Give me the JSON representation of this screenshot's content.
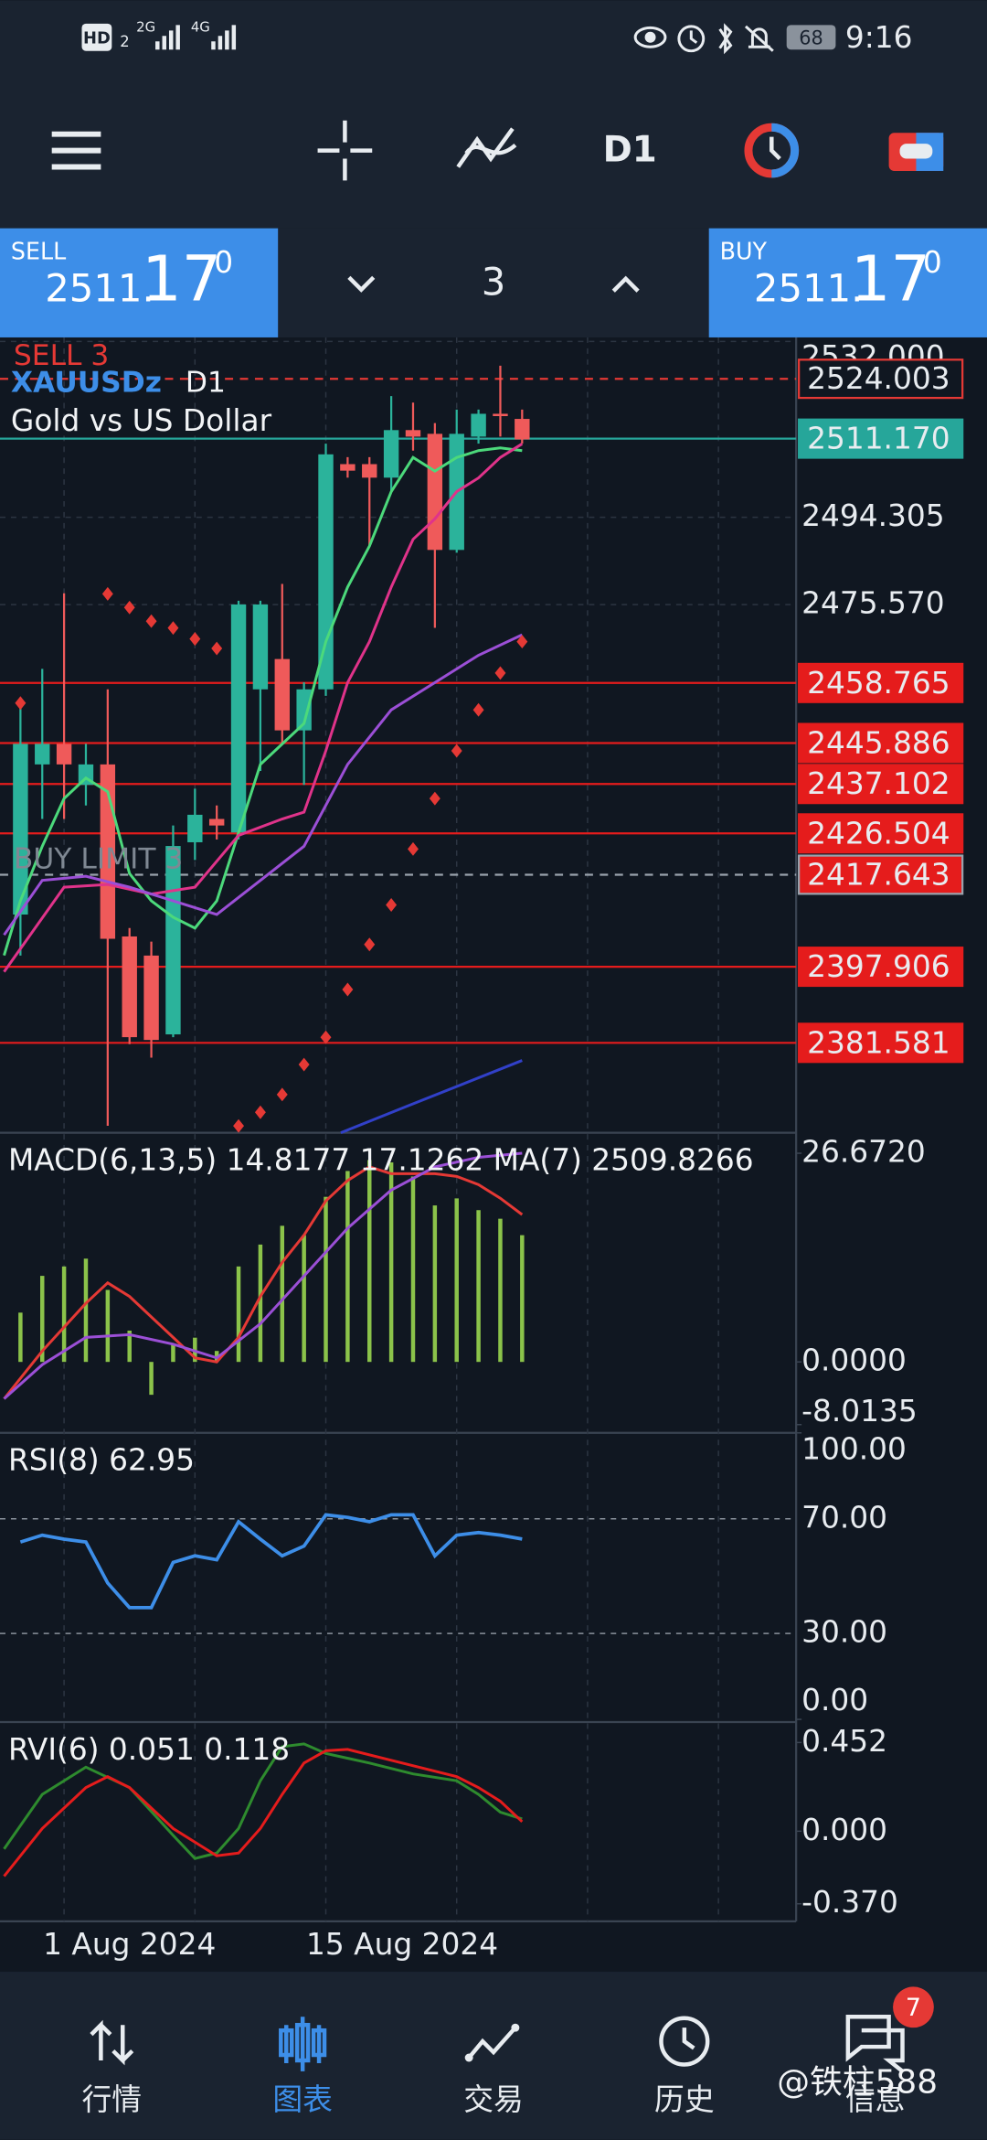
{
  "status_bar": {
    "network": "HD",
    "sim": "2",
    "signal_a": "2G",
    "signal_b": "4G",
    "battery": "68",
    "time": "9:16"
  },
  "toolbar": {
    "timeframe": "D1"
  },
  "trade_panel": {
    "sell": {
      "label": "SELL",
      "price_main": "2511.",
      "price_big": "17",
      "price_sup": "0"
    },
    "volume": "3",
    "buy": {
      "label": "BUY",
      "price_main": "2511.",
      "price_big": "17",
      "price_sup": "0"
    }
  },
  "chart": {
    "type": "candlestick",
    "symbol": "XAUUSDz",
    "timeframe": "D1",
    "description": "Gold vs US Dollar",
    "orders": [
      "SELL 3",
      "BUY LIMIT 3"
    ],
    "ylim": [
      2362.3,
      2532.0
    ],
    "yticks": [
      {
        "value": 2532,
        "label": "2532.000"
      },
      2494.305,
      {
        "value": 2475.57,
        "label": "2475.570"
      }
    ],
    "levels": [
      {
        "value": 2524.003,
        "label": "2524.003",
        "line": "dashed",
        "color": "#e53935",
        "box": "outline"
      },
      {
        "value": 2511.17,
        "label": "2511.170",
        "line": "solid",
        "color": "#26a69a",
        "box": "fill"
      },
      {
        "value": 2458.765,
        "label": "2458.765",
        "line": "solid",
        "color": "#e51c1c",
        "box": "fill"
      },
      {
        "value": 2445.886,
        "label": "2445.886",
        "line": "solid",
        "color": "#e51c1c",
        "box": "fill"
      },
      {
        "value": 2437.102,
        "label": "2437.102",
        "line": "solid",
        "color": "#e51c1c",
        "box": "fill"
      },
      {
        "value": 2426.504,
        "label": "2426.504",
        "line": "solid",
        "color": "#e51c1c",
        "box": "fill"
      },
      {
        "value": 2417.643,
        "label": "2417.643",
        "line": "dashed",
        "color": "#9aa3ad",
        "box": "fill"
      },
      {
        "value": 2397.906,
        "label": "2397.906",
        "line": "solid",
        "color": "#e51c1c",
        "box": "fill"
      },
      {
        "value": 2381.581,
        "label": "2381.581",
        "line": "solid",
        "color": "#e51c1c",
        "box": "fill"
      }
    ],
    "up_color": "#2bb39b",
    "down_color": "#ef5a5a",
    "candles": [
      {
        "o": 2409.1,
        "h": 2454.5,
        "l": 2400.3,
        "c": 2445.7
      },
      {
        "o": 2441.3,
        "h": 2461.8,
        "l": 2429.6,
        "c": 2445.7
      },
      {
        "o": 2445.7,
        "h": 2478.0,
        "l": 2429.6,
        "c": 2441.3
      },
      {
        "o": 2436.9,
        "h": 2445.7,
        "l": 2432.5,
        "c": 2441.3
      },
      {
        "o": 2441.3,
        "h": 2457.4,
        "l": 2363.8,
        "c": 2403.9
      },
      {
        "o": 2404.4,
        "h": 2406.2,
        "l": 2381.3,
        "c": 2382.8
      },
      {
        "o": 2400.3,
        "h": 2403.3,
        "l": 2378.4,
        "c": 2382.2
      },
      {
        "o": 2383.4,
        "h": 2428.2,
        "l": 2382.8,
        "c": 2423.8
      },
      {
        "o": 2424.6,
        "h": 2436.1,
        "l": 2420.8,
        "c": 2430.5
      },
      {
        "o": 2429.6,
        "h": 2432.5,
        "l": 2425.2,
        "c": 2428.2
      },
      {
        "o": 2426.7,
        "h": 2476.4,
        "l": 2425.2,
        "c": 2475.6
      },
      {
        "o": 2457.4,
        "h": 2476.4,
        "l": 2439.9,
        "c": 2475.6
      },
      {
        "o": 2463.9,
        "h": 2480.0,
        "l": 2445.7,
        "c": 2448.6
      },
      {
        "o": 2448.6,
        "h": 2458.9,
        "l": 2436.9,
        "c": 2457.4
      },
      {
        "o": 2457.4,
        "h": 2510.1,
        "l": 2456.0,
        "c": 2507.8
      },
      {
        "o": 2505.7,
        "h": 2507.2,
        "l": 2502.8,
        "c": 2504.3
      },
      {
        "o": 2505.7,
        "h": 2507.2,
        "l": 2488.2,
        "c": 2502.8
      },
      {
        "o": 2502.8,
        "h": 2520.3,
        "l": 2499.9,
        "c": 2513.0
      },
      {
        "o": 2513.0,
        "h": 2518.9,
        "l": 2508.6,
        "c": 2511.6
      },
      {
        "o": 2512.2,
        "h": 2514.5,
        "l": 2470.6,
        "c": 2487.3
      },
      {
        "o": 2487.3,
        "h": 2517.4,
        "l": 2486.7,
        "c": 2512.2
      },
      {
        "o": 2511.6,
        "h": 2517.4,
        "l": 2510.1,
        "c": 2516.5
      },
      {
        "o": 2516.5,
        "h": 2526.8,
        "l": 2511.6,
        "c": 2516.0
      },
      {
        "o": 2515.4,
        "h": 2517.4,
        "l": 2510.1,
        "c": 2511.0
      }
    ],
    "dates": [
      "1 Aug 2024",
      "15 Aug 2024"
    ]
  },
  "macd": {
    "type": "bar",
    "label": "MACD(6,13,5) 14.8177 17.1262 MA(7) 2509.8266",
    "color": "#8bc34a",
    "ylim": [
      -9.07,
      29.29
    ],
    "yticks": [
      {
        "value": 26.672,
        "label": "26.6720"
      },
      {
        "value": 0,
        "label": "0.0000"
      },
      {
        "value": -8.0135,
        "label": "-8.0135"
      }
    ],
    "values": [
      6.3,
      11.0,
      12.2,
      13.2,
      9.2,
      4.0,
      -4.2,
      2.3,
      3.1,
      1.4,
      12.2,
      15.0,
      17.4,
      16.2,
      21.1,
      24.4,
      25.8,
      25.5,
      23.7,
      20.0,
      20.9,
      19.4,
      18.3,
      16.2
    ]
  },
  "rsi": {
    "type": "line",
    "label": "RSI(8) 62.95",
    "color": "#3d8ee8",
    "ylim": [
      0,
      100
    ],
    "yticks": [
      {
        "value": 100,
        "label": "100.00"
      },
      {
        "value": 70,
        "label": "70.00"
      },
      {
        "value": 30,
        "label": "30.00"
      },
      {
        "value": 0,
        "label": "0.00"
      }
    ],
    "values": [
      61.9,
      64.3,
      62.9,
      61.9,
      47.6,
      39.0,
      39.0,
      54.8,
      57.1,
      55.7,
      69.0,
      62.9,
      57.1,
      60.5,
      71.4,
      70.5,
      69.0,
      71.4,
      71.4,
      57.1,
      64.3,
      65.2,
      64.3,
      62.95
    ]
  },
  "rvi": {
    "label": "RVI(6) 0.051 0.118",
    "ylim": [
      -0.459,
      0.556
    ],
    "yticks": [
      0.452,
      {
        "value": 0,
        "label": "0.000"
      },
      {
        "value": -0.37,
        "label": "-0.370"
      }
    ]
  },
  "nav": {
    "items": [
      "行情",
      "图表",
      "交易",
      "历史",
      "信息"
    ],
    "badge": "7",
    "watermark": "@铁柱588"
  }
}
